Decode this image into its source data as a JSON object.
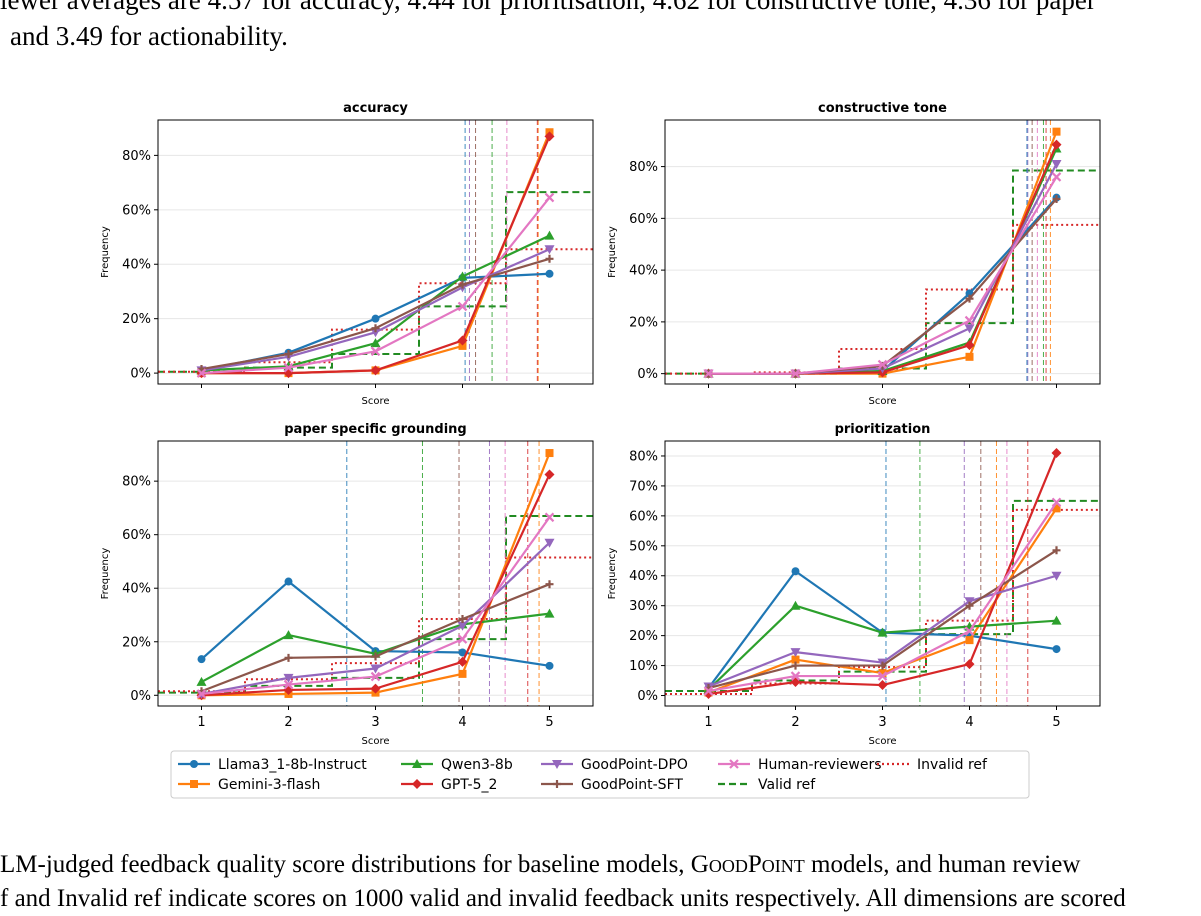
{
  "text": {
    "top_line1": "lewer averages are 4.57 for accuracy, 4.44 for prioritisation, 4.62 for constructive tone, 4.36 for paper",
    "top_line2": "and 3.49 for actionability.",
    "caption_line1_a": "LM-judged feedback quality score distributions for baseline models, ",
    "caption_line1_b": "GoodPoint",
    "caption_line1_c": " models, and human review",
    "caption_line2": "f and Invalid ref indicate scores on 1000 valid and invalid feedback units respectively. All dimensions are scored"
  },
  "colors": {
    "Llama3_1-8b-Instruct": "#1f77b4",
    "Gemini-3-flash": "#ff7f0e",
    "Qwen3-8b": "#2ca02c",
    "GPT-5_2": "#d62728",
    "GoodPoint-DPO": "#9467bd",
    "GoodPoint-SFT": "#8c564b",
    "Human-reviewers": "#e377c2",
    "Valid ref": "#228b22",
    "Invalid ref": "#d62728"
  },
  "legend": [
    {
      "name": "Llama3_1-8b-Instruct",
      "marker": "circle",
      "style": "solid"
    },
    {
      "name": "Gemini-3-flash",
      "marker": "square",
      "style": "solid"
    },
    {
      "name": "Qwen3-8b",
      "marker": "triangle-up",
      "style": "solid"
    },
    {
      "name": "GPT-5_2",
      "marker": "diamond",
      "style": "solid"
    },
    {
      "name": "GoodPoint-DPO",
      "marker": "triangle-down",
      "style": "solid"
    },
    {
      "name": "GoodPoint-SFT",
      "marker": "plus",
      "style": "solid"
    },
    {
      "name": "Human-reviewers",
      "marker": "x",
      "style": "solid"
    },
    {
      "name": "Valid ref",
      "marker": "none",
      "style": "dashed"
    },
    {
      "name": "Invalid ref",
      "marker": "none",
      "style": "dotted"
    }
  ],
  "chart_data": [
    {
      "type": "line",
      "title": "accuracy",
      "xlabel": "Score",
      "ylabel": "Frequency",
      "x": [
        1,
        2,
        3,
        4,
        5
      ],
      "xlim": [
        0.5,
        5.5
      ],
      "ylim": [
        -4,
        93
      ],
      "yticks": [
        0,
        20,
        40,
        60,
        80
      ],
      "show_xticklabels": false,
      "grid": "horizontal",
      "series": [
        {
          "name": "Llama3_1-8b-Instruct",
          "values": [
            1,
            7.5,
            20,
            35,
            36.5
          ]
        },
        {
          "name": "Gemini-3-flash",
          "values": [
            0,
            0,
            1,
            10,
            88.5
          ]
        },
        {
          "name": "Qwen3-8b",
          "values": [
            1,
            2.5,
            11,
            35.5,
            50.5
          ]
        },
        {
          "name": "GPT-5_2",
          "values": [
            0,
            0,
            1,
            12,
            87
          ]
        },
        {
          "name": "GoodPoint-DPO",
          "values": [
            1,
            6,
            15,
            31.5,
            45.5
          ]
        },
        {
          "name": "GoodPoint-SFT",
          "values": [
            1.5,
            7,
            16.5,
            32.5,
            42
          ]
        },
        {
          "name": "Human-reviewers",
          "values": [
            0,
            2,
            8,
            24.5,
            64.5
          ]
        }
      ],
      "valid_ref": [
        0.5,
        2,
        7,
        24.5,
        66.5
      ],
      "invalid_ref": [
        0.5,
        4,
        16,
        33,
        45.5
      ],
      "means": {
        "Llama3_1-8b-Instruct": 4.03,
        "Qwen3-8b": 4.34,
        "GoodPoint-DPO": 4.08,
        "GoodPoint-SFT": 4.15,
        "Human-reviewers": 4.51,
        "Gemini-3-flash": 4.87,
        "GPT-5_2": 4.86
      }
    },
    {
      "type": "line",
      "title": "constructive tone",
      "xlabel": "Score",
      "ylabel": "Frequency",
      "x": [
        1,
        2,
        3,
        4,
        5
      ],
      "xlim": [
        0.5,
        5.5
      ],
      "ylim": [
        -4,
        98
      ],
      "yticks": [
        0,
        20,
        40,
        60,
        80
      ],
      "show_xticklabels": false,
      "grid": "horizontal",
      "series": [
        {
          "name": "Llama3_1-8b-Instruct",
          "values": [
            0,
            0,
            1,
            31,
            68
          ]
        },
        {
          "name": "Gemini-3-flash",
          "values": [
            0,
            0,
            0,
            6.5,
            93.5
          ]
        },
        {
          "name": "Qwen3-8b",
          "values": [
            0,
            0,
            1,
            12,
            87
          ]
        },
        {
          "name": "GPT-5_2",
          "values": [
            0,
            0,
            0.5,
            11,
            88.5
          ]
        },
        {
          "name": "GoodPoint-DPO",
          "values": [
            0,
            0,
            2,
            17.5,
            81
          ]
        },
        {
          "name": "GoodPoint-SFT",
          "values": [
            0,
            0,
            3,
            29,
            67.5
          ]
        },
        {
          "name": "Human-reviewers",
          "values": [
            0,
            0,
            3.5,
            20.5,
            76
          ]
        }
      ],
      "valid_ref": [
        0,
        0,
        2,
        19.5,
        78.5
      ],
      "invalid_ref": [
        0,
        0.5,
        9.5,
        32.5,
        57.5
      ],
      "means": {
        "GoodPoint-DPO": 4.67,
        "Llama3_1-8b-Instruct": 4.66,
        "GoodPoint-SFT": 4.72,
        "Human-reviewers": 4.78,
        "Qwen3-8b": 4.85,
        "GPT-5_2": 4.88,
        "Gemini-3-flash": 4.93
      }
    },
    {
      "type": "line",
      "title": "paper specific grounding",
      "xlabel": "Score",
      "ylabel": "Frequency",
      "x": [
        1,
        2,
        3,
        4,
        5
      ],
      "xlim": [
        0.5,
        5.5
      ],
      "ylim": [
        -4,
        95
      ],
      "yticks": [
        0,
        20,
        40,
        60,
        80
      ],
      "show_xticklabels": true,
      "grid": "horizontal",
      "series": [
        {
          "name": "Llama3_1-8b-Instruct",
          "values": [
            13.5,
            42.5,
            16.5,
            16,
            11
          ]
        },
        {
          "name": "Gemini-3-flash",
          "values": [
            0,
            0.5,
            1,
            8,
            90.5
          ]
        },
        {
          "name": "Qwen3-8b",
          "values": [
            5,
            22.5,
            15.5,
            26.5,
            30.5
          ]
        },
        {
          "name": "GPT-5_2",
          "values": [
            0,
            2,
            2.5,
            12.5,
            82.5
          ]
        },
        {
          "name": "GoodPoint-DPO",
          "values": [
            0.5,
            6.5,
            10,
            26,
            57
          ]
        },
        {
          "name": "GoodPoint-SFT",
          "values": [
            1.5,
            14,
            14.5,
            28.5,
            41.5
          ]
        },
        {
          "name": "Human-reviewers",
          "values": [
            0.5,
            4,
            7,
            21,
            66.5
          ]
        }
      ],
      "valid_ref": [
        1,
        3.5,
        6.5,
        21,
        67
      ],
      "invalid_ref": [
        1.5,
        6,
        12,
        28.5,
        51.5
      ],
      "means": {
        "Llama3_1-8b-Instruct": 2.67,
        "Qwen3-8b": 3.54,
        "GoodPoint-SFT": 3.96,
        "GoodPoint-DPO": 4.31,
        "Human-reviewers": 4.49,
        "GPT-5_2": 4.75,
        "Gemini-3-flash": 4.88
      }
    },
    {
      "type": "line",
      "title": "prioritization",
      "xlabel": "Score",
      "ylabel": "Frequency",
      "x": [
        1,
        2,
        3,
        4,
        5
      ],
      "xlim": [
        0.5,
        5.5
      ],
      "ylim": [
        -3.5,
        85
      ],
      "yticks": [
        0,
        10,
        20,
        30,
        40,
        50,
        60,
        70,
        80
      ],
      "show_xticklabels": true,
      "grid": "horizontal",
      "series": [
        {
          "name": "Llama3_1-8b-Instruct",
          "values": [
            2.5,
            41.5,
            21,
            20,
            15.5
          ]
        },
        {
          "name": "Gemini-3-flash",
          "values": [
            1,
            12,
            7.5,
            18.5,
            62.5
          ]
        },
        {
          "name": "Qwen3-8b",
          "values": [
            2,
            30,
            21,
            23,
            25
          ]
        },
        {
          "name": "GPT-5_2",
          "values": [
            0.5,
            4.5,
            3.5,
            10.5,
            81
          ]
        },
        {
          "name": "GoodPoint-DPO",
          "values": [
            3,
            14.5,
            11,
            31.5,
            40
          ]
        },
        {
          "name": "GoodPoint-SFT",
          "values": [
            2.5,
            10,
            10,
            30,
            48.5
          ]
        },
        {
          "name": "Human-reviewers",
          "values": [
            1.5,
            6.5,
            6.5,
            21.5,
            64.5
          ]
        }
      ],
      "valid_ref": [
        1.5,
        5,
        8,
        20.5,
        65
      ],
      "invalid_ref": [
        0.5,
        4,
        9.5,
        25,
        62
      ],
      "means": {
        "Llama3_1-8b-Instruct": 3.04,
        "Qwen3-8b": 3.43,
        "GoodPoint-DPO": 3.94,
        "GoodPoint-SFT": 4.13,
        "Gemini-3-flash": 4.31,
        "Human-reviewers": 4.43,
        "GPT-5_2": 4.67
      }
    }
  ]
}
